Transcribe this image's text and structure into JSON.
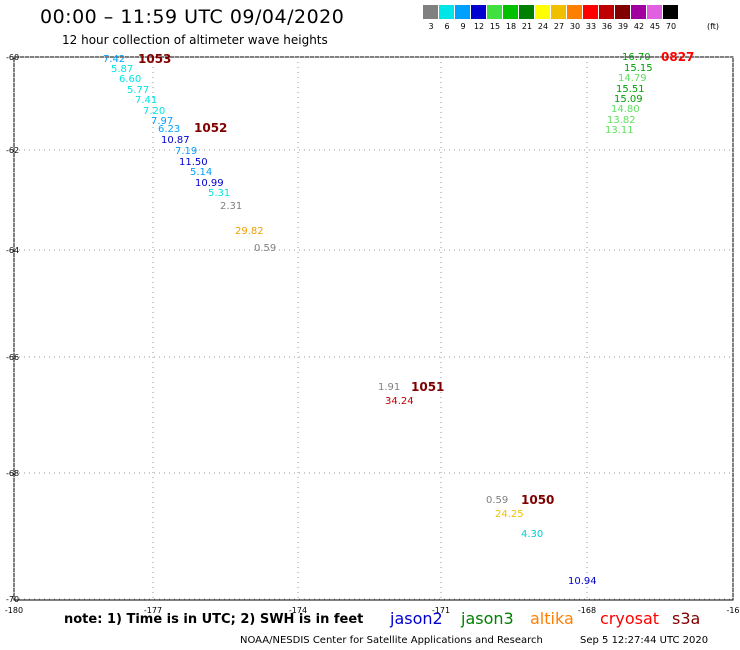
{
  "header": {
    "title": "00:00 – 11:59 UTC 09/04/2020",
    "subtitle": "12 hour collection of altimeter wave heights"
  },
  "color_scale": {
    "labels": [
      "3",
      "6",
      "9",
      "12",
      "15",
      "18",
      "21",
      "24",
      "27",
      "30",
      "33",
      "36",
      "39",
      "42",
      "45",
      "70"
    ],
    "unit": "(ft)",
    "colors": [
      "#808080",
      "#00e5e5",
      "#00a0ff",
      "#0000d0",
      "#40e040",
      "#00c000",
      "#008000",
      "#ffff00",
      "#f0c000",
      "#ff8000",
      "#ff0000",
      "#c00000",
      "#800000",
      "#a000a0",
      "#e060e0",
      "#000000"
    ]
  },
  "axes": {
    "lat_labels": [
      "-60",
      "-62",
      "-64",
      "-66",
      "-68",
      "-70"
    ],
    "lon_labels": [
      "-180",
      "-177",
      "-174",
      "-171",
      "-168",
      "-16"
    ]
  },
  "observations": [
    {
      "text": "7.42",
      "color": "#00a0ff"
    },
    {
      "text": "5.87",
      "color": "#00e5e5"
    },
    {
      "text": "6.60",
      "color": "#00e5e5"
    },
    {
      "text": "5.77",
      "color": "#00e5e5"
    },
    {
      "text": "7.41",
      "color": "#00e5e5"
    },
    {
      "text": "7.20",
      "color": "#00e5e5"
    },
    {
      "text": "7.97",
      "color": "#00a0ff"
    },
    {
      "text": "6.23",
      "color": "#00a0ff"
    },
    {
      "text": "10.87",
      "color": "#0000d0"
    },
    {
      "text": "7.19",
      "color": "#00a0ff"
    },
    {
      "text": "11.50",
      "color": "#0000d0"
    },
    {
      "text": "5.14",
      "color": "#00a0ff"
    },
    {
      "text": "10.99",
      "color": "#0000d0"
    },
    {
      "text": "5.31",
      "color": "#00e5e5"
    },
    {
      "text": "2.31",
      "color": "#808080"
    },
    {
      "text": "29.82",
      "color": "#f0a000"
    },
    {
      "text": "0.59",
      "color": "#808080"
    },
    {
      "text": "16.70",
      "color": "#00a000"
    },
    {
      "text": "15.15",
      "color": "#00a000"
    },
    {
      "text": "14.79",
      "color": "#60e060"
    },
    {
      "text": "15.51",
      "color": "#00a000"
    },
    {
      "text": "15.09",
      "color": "#00a000"
    },
    {
      "text": "14.80",
      "color": "#60e060"
    },
    {
      "text": "13.82",
      "color": "#60e060"
    },
    {
      "text": "13.11",
      "color": "#60e060"
    },
    {
      "text": "1.91",
      "color": "#808080"
    },
    {
      "text": "34.24",
      "color": "#c00000"
    },
    {
      "text": "0.59",
      "color": "#808080"
    },
    {
      "text": "24.25",
      "color": "#f0c000"
    },
    {
      "text": "4.30",
      "color": "#00d0d0"
    },
    {
      "text": "10.94",
      "color": "#0000d0"
    }
  ],
  "time_labels": [
    {
      "text": "1053",
      "color": "#800000"
    },
    {
      "text": "1052",
      "color": "#800000"
    },
    {
      "text": "0827",
      "color": "#ff0000"
    },
    {
      "text": "1051",
      "color": "#800000"
    },
    {
      "text": "1050",
      "color": "#800000"
    }
  ],
  "footer": {
    "note": "note: 1) Time is in UTC; 2) SWH is in feet",
    "satellites": [
      {
        "name": "jason2",
        "color": "#0000d0"
      },
      {
        "name": "jason3",
        "color": "#008000"
      },
      {
        "name": "altika",
        "color": "#ff8000"
      },
      {
        "name": "cryosat",
        "color": "#ff0000"
      },
      {
        "name": "s3a",
        "color": "#800000"
      }
    ],
    "credit": "NOAA/NESDIS Center for Satellite Applications and Research",
    "timestamp": "Sep  5 12:27:44 UTC 2020"
  }
}
